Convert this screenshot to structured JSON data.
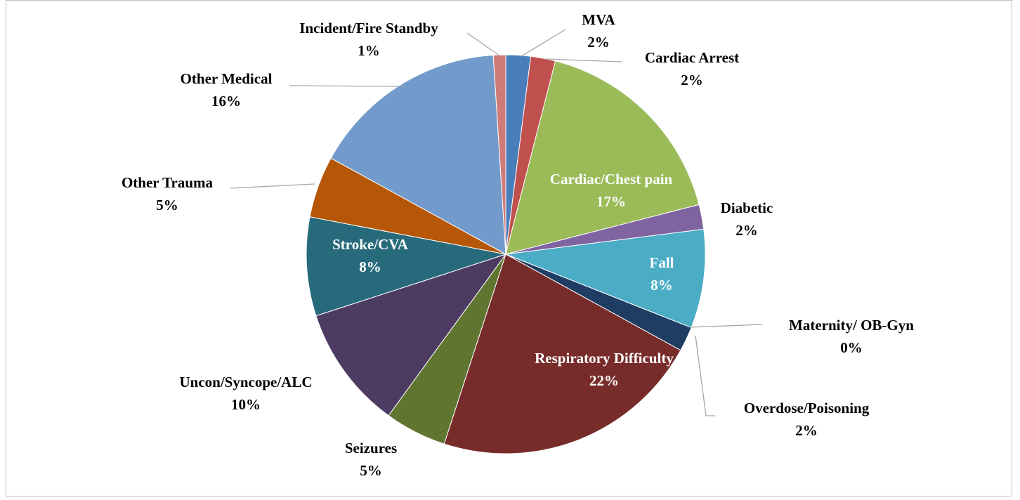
{
  "chart_data": {
    "type": "pie",
    "categories": [
      "MVA",
      "Cardiac Arrest",
      "Cardiac/Chest pain",
      "Diabetic",
      "Fall",
      "Maternity/ OB-Gyn",
      "Overdose/Poisoning",
      "Respiratory Difficulty",
      "Seizures",
      "Uncon/Syncope/ALC",
      "Stroke/CVA",
      "Other Trauma",
      "Other Medical",
      "Incident/Fire Standby"
    ],
    "values": [
      2,
      2,
      17,
      2,
      8,
      0,
      2,
      22,
      5,
      10,
      8,
      5,
      16,
      1
    ],
    "value_labels": [
      "2%",
      "2%",
      "17%",
      "2%",
      "8%",
      "0%",
      "2%",
      "22%",
      "5%",
      "10%",
      "8%",
      "5%",
      "16%",
      "1%"
    ],
    "colors": [
      "#4a7ebb",
      "#c0504d",
      "#9bbb59",
      "#8064a2",
      "#4bacc6",
      "#f79646",
      "#1f3d63",
      "#772c2a",
      "#5f7530",
      "#4d3b62",
      "#276a7c",
      "#b65708",
      "#729aca",
      "#d07b78"
    ]
  }
}
